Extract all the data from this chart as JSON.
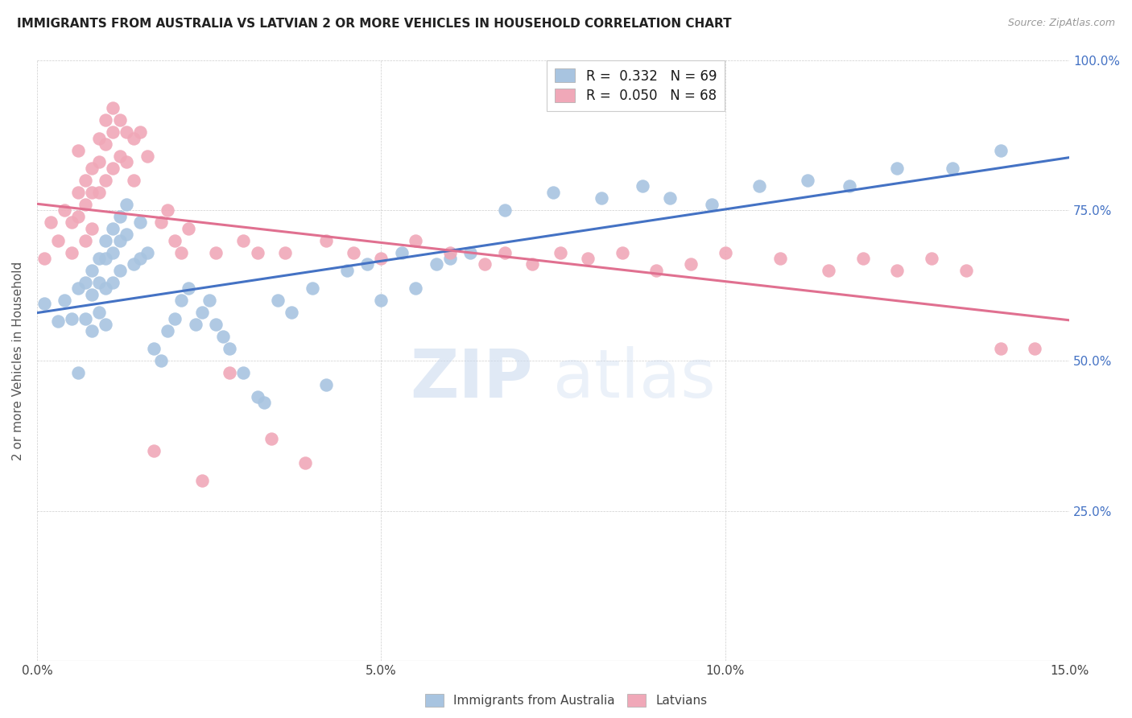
{
  "title": "IMMIGRANTS FROM AUSTRALIA VS LATVIAN 2 OR MORE VEHICLES IN HOUSEHOLD CORRELATION CHART",
  "source": "Source: ZipAtlas.com",
  "ylabel": "2 or more Vehicles in Household",
  "color_blue": "#a8c4e0",
  "color_pink": "#f0a8b8",
  "line_color_blue": "#4472c4",
  "line_color_pink": "#e07090",
  "watermark_zip": "ZIP",
  "watermark_atlas": "atlas",
  "blue_x": [
    0.001,
    0.003,
    0.004,
    0.005,
    0.006,
    0.006,
    0.007,
    0.007,
    0.008,
    0.008,
    0.008,
    0.009,
    0.009,
    0.009,
    0.01,
    0.01,
    0.01,
    0.01,
    0.011,
    0.011,
    0.011,
    0.012,
    0.012,
    0.012,
    0.013,
    0.013,
    0.014,
    0.015,
    0.015,
    0.016,
    0.017,
    0.018,
    0.019,
    0.02,
    0.021,
    0.022,
    0.023,
    0.024,
    0.025,
    0.026,
    0.027,
    0.028,
    0.03,
    0.032,
    0.033,
    0.035,
    0.037,
    0.04,
    0.042,
    0.045,
    0.048,
    0.05,
    0.053,
    0.055,
    0.058,
    0.06,
    0.063,
    0.068,
    0.075,
    0.082,
    0.088,
    0.092,
    0.098,
    0.105,
    0.112,
    0.118,
    0.125,
    0.133,
    0.14
  ],
  "blue_y": [
    0.595,
    0.565,
    0.6,
    0.57,
    0.62,
    0.48,
    0.63,
    0.57,
    0.65,
    0.61,
    0.55,
    0.67,
    0.63,
    0.58,
    0.7,
    0.67,
    0.62,
    0.56,
    0.72,
    0.68,
    0.63,
    0.74,
    0.7,
    0.65,
    0.76,
    0.71,
    0.66,
    0.73,
    0.67,
    0.68,
    0.52,
    0.5,
    0.55,
    0.57,
    0.6,
    0.62,
    0.56,
    0.58,
    0.6,
    0.56,
    0.54,
    0.52,
    0.48,
    0.44,
    0.43,
    0.6,
    0.58,
    0.62,
    0.46,
    0.65,
    0.66,
    0.6,
    0.68,
    0.62,
    0.66,
    0.67,
    0.68,
    0.75,
    0.78,
    0.77,
    0.79,
    0.77,
    0.76,
    0.79,
    0.8,
    0.79,
    0.82,
    0.82,
    0.85
  ],
  "pink_x": [
    0.001,
    0.002,
    0.003,
    0.004,
    0.005,
    0.005,
    0.006,
    0.006,
    0.006,
    0.007,
    0.007,
    0.007,
    0.008,
    0.008,
    0.008,
    0.009,
    0.009,
    0.009,
    0.01,
    0.01,
    0.01,
    0.011,
    0.011,
    0.011,
    0.012,
    0.012,
    0.013,
    0.013,
    0.014,
    0.014,
    0.015,
    0.016,
    0.017,
    0.018,
    0.019,
    0.02,
    0.021,
    0.022,
    0.024,
    0.026,
    0.028,
    0.03,
    0.032,
    0.034,
    0.036,
    0.039,
    0.042,
    0.046,
    0.05,
    0.055,
    0.06,
    0.065,
    0.068,
    0.072,
    0.076,
    0.08,
    0.085,
    0.09,
    0.095,
    0.1,
    0.108,
    0.115,
    0.12,
    0.125,
    0.13,
    0.135,
    0.14,
    0.145
  ],
  "pink_y": [
    0.67,
    0.73,
    0.7,
    0.75,
    0.73,
    0.68,
    0.78,
    0.74,
    0.85,
    0.8,
    0.76,
    0.7,
    0.82,
    0.78,
    0.72,
    0.87,
    0.83,
    0.78,
    0.9,
    0.86,
    0.8,
    0.92,
    0.88,
    0.82,
    0.9,
    0.84,
    0.88,
    0.83,
    0.87,
    0.8,
    0.88,
    0.84,
    0.35,
    0.73,
    0.75,
    0.7,
    0.68,
    0.72,
    0.3,
    0.68,
    0.48,
    0.7,
    0.68,
    0.37,
    0.68,
    0.33,
    0.7,
    0.68,
    0.67,
    0.7,
    0.68,
    0.66,
    0.68,
    0.66,
    0.68,
    0.67,
    0.68,
    0.65,
    0.66,
    0.68,
    0.67,
    0.65,
    0.67,
    0.65,
    0.67,
    0.65,
    0.52,
    0.52
  ],
  "xlim": [
    0.0,
    0.15
  ],
  "ylim": [
    0.0,
    1.0
  ],
  "x_ticks": [
    0.0,
    0.05,
    0.1,
    0.15
  ],
  "x_tick_labels": [
    "0.0%",
    "5.0%",
    "10.0%",
    "15.0%"
  ],
  "y_ticks": [
    0.0,
    0.25,
    0.5,
    0.75,
    1.0
  ],
  "y_tick_labels": [
    "",
    "25.0%",
    "50.0%",
    "75.0%",
    "100.0%"
  ]
}
